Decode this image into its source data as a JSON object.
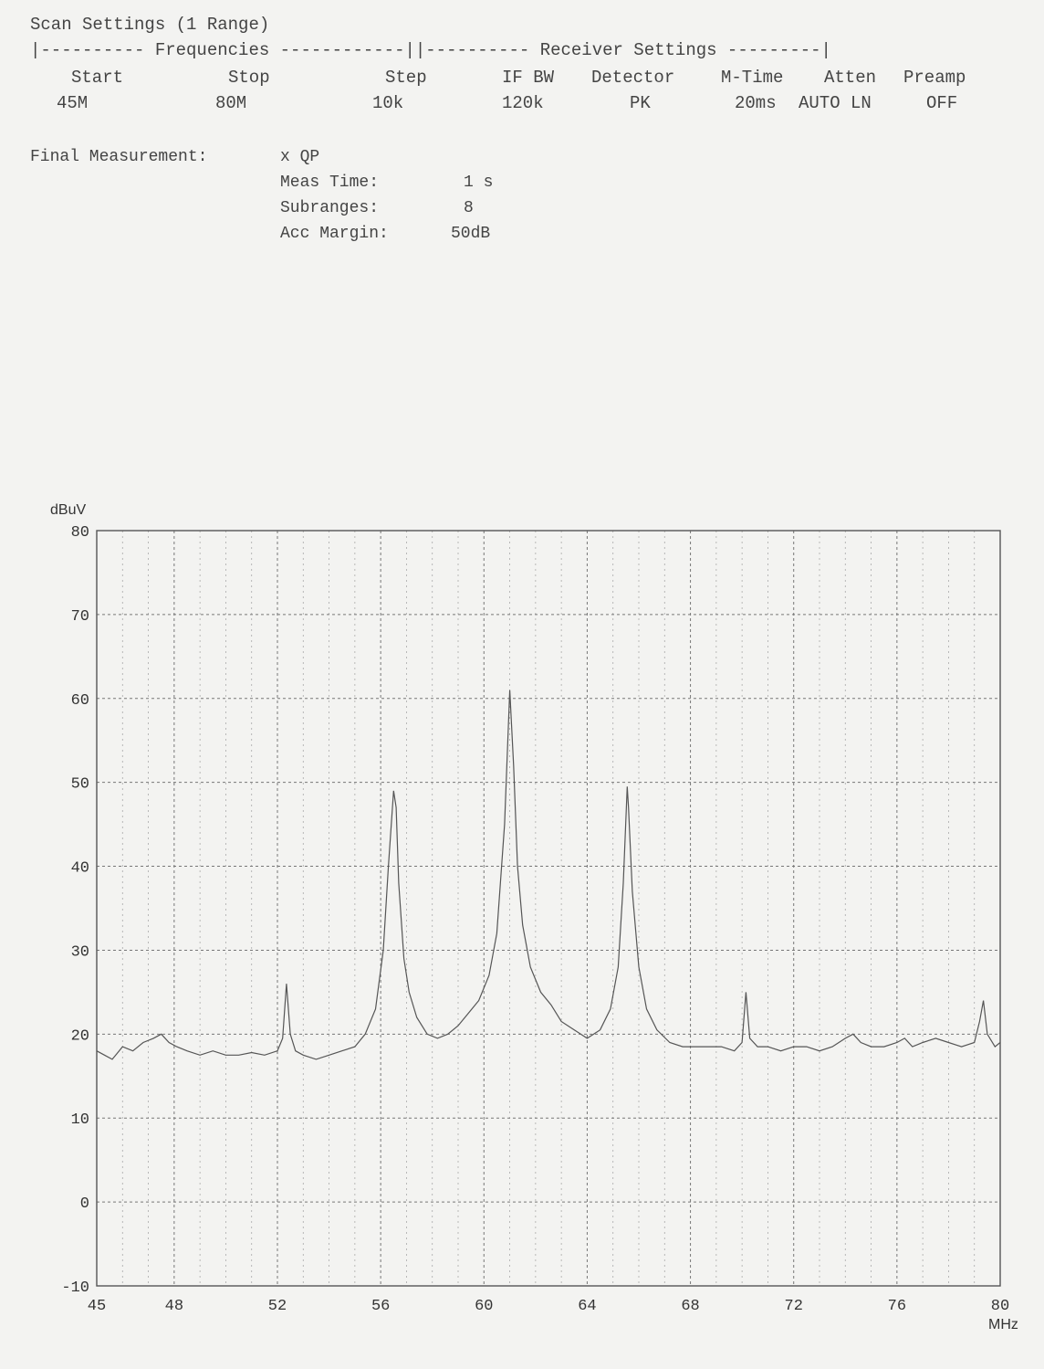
{
  "header": {
    "title": "Scan Settings (1 Range)",
    "section_line": "|---------- Frequencies ------------||---------- Receiver Settings ---------|"
  },
  "settings": {
    "columns": [
      {
        "label": "Start",
        "value": "45M"
      },
      {
        "label": "Stop",
        "value": "80M"
      },
      {
        "label": "Step",
        "value": "10k"
      },
      {
        "label": "IF BW",
        "value": "120k"
      },
      {
        "label": "Detector",
        "value": "PK"
      },
      {
        "label": "M-Time",
        "value": "20ms"
      },
      {
        "label": "Atten",
        "value": "AUTO LN"
      },
      {
        "label": "Preamp",
        "value": "OFF"
      }
    ]
  },
  "final_measurement": {
    "label": "Final Measurement:",
    "value": "x QP",
    "meas_time_label": "Meas Time:",
    "meas_time_value": "1 s",
    "subranges_label": "Subranges:",
    "subranges_value": "8",
    "acc_margin_label": "Acc Margin:",
    "acc_margin_value": "50dB"
  },
  "chart_data": {
    "type": "line",
    "ylabel": "dBuV",
    "xlabel": "MHz",
    "xlim": [
      45,
      80
    ],
    "ylim": [
      -10,
      80
    ],
    "x_ticks": [
      45,
      48,
      52,
      56,
      60,
      64,
      68,
      72,
      76,
      80
    ],
    "y_ticks": [
      -10,
      0,
      10,
      20,
      30,
      40,
      50,
      60,
      70,
      80
    ],
    "grid": true,
    "line_color": "#555555",
    "series": [
      {
        "x": [
          45,
          45.3,
          45.6,
          46,
          46.4,
          46.8,
          47.2,
          47.5,
          47.8,
          48.1,
          48.5,
          49,
          49.5,
          50,
          50.5,
          51,
          51.5,
          52,
          52.2,
          52.35,
          52.5,
          52.7,
          53,
          53.5,
          54,
          54.5,
          55,
          55.4,
          55.8,
          56.1,
          56.3,
          56.5,
          56.6,
          56.7,
          56.9,
          57.1,
          57.4,
          57.8,
          58.2,
          58.6,
          59,
          59.4,
          59.8,
          60.2,
          60.5,
          60.8,
          61,
          61.15,
          61.3,
          61.5,
          61.8,
          62.2,
          62.6,
          63,
          63.5,
          64,
          64.5,
          64.9,
          65.2,
          65.4,
          65.55,
          65.6,
          65.75,
          66,
          66.3,
          66.7,
          67.2,
          67.7,
          68.2,
          68.7,
          69.2,
          69.7,
          70,
          70.15,
          70.3,
          70.6,
          71,
          71.5,
          72,
          72.5,
          73,
          73.5,
          74,
          74.3,
          74.6,
          75,
          75.5,
          76,
          76.3,
          76.6,
          77,
          77.5,
          78,
          78.5,
          79,
          79.2,
          79.35,
          79.5,
          79.8,
          80
        ],
        "y": [
          18,
          17.5,
          17,
          18.5,
          18,
          19,
          19.5,
          20,
          19,
          18.5,
          18,
          17.5,
          18,
          17.5,
          17.5,
          17.8,
          17.5,
          18,
          19.5,
          26,
          20,
          18,
          17.5,
          17,
          17.5,
          18,
          18.5,
          20,
          23,
          30,
          40,
          49,
          47,
          38,
          29,
          25,
          22,
          20,
          19.5,
          20,
          21,
          22.5,
          24,
          27,
          32,
          45,
          61,
          52,
          40,
          33,
          28,
          25,
          23.5,
          21.5,
          20.5,
          19.5,
          20.5,
          23,
          28,
          38,
          49.5,
          47,
          37,
          28,
          23,
          20.5,
          19,
          18.5,
          18.5,
          18.5,
          18.5,
          18,
          19,
          25,
          19.5,
          18.5,
          18.5,
          18,
          18.5,
          18.5,
          18,
          18.5,
          19.5,
          20,
          19,
          18.5,
          18.5,
          19,
          19.5,
          18.5,
          19,
          19.5,
          19,
          18.5,
          19,
          21.5,
          24,
          20,
          18.5,
          19
        ]
      }
    ]
  }
}
